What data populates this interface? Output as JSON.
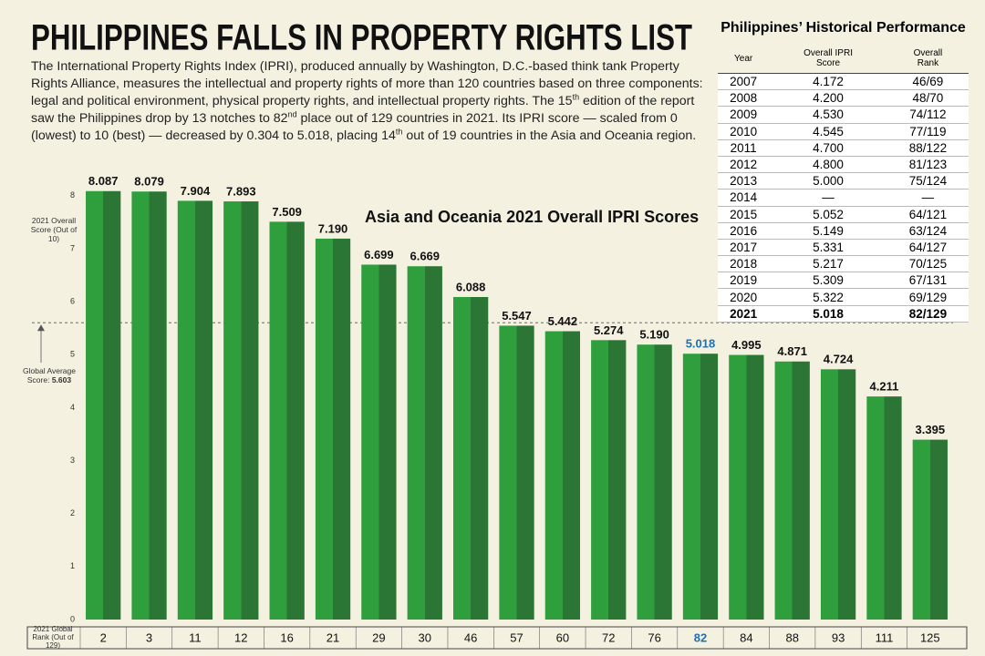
{
  "header": {
    "title": "PHILIPPINES FALLS IN PROPERTY RIGHTS LIST",
    "intro": [
      "The International Property Rights Index (IPRI), produced annually by Washington, D.C.-based think tank Property Rights Alliance, measures the intellectual and property rights of more than 120 countries based on three components: legal and political environment, physical property rights, and intellectual property rights. The 15",
      "th",
      " edition of the report saw the Philippines drop by 13 notches to 82",
      "nd",
      " place out of 129 countries in 2021. Its IPRI score — scaled from 0 (lowest) to 10 (best) — decreased by 0.304 to 5.018, placing 14",
      "th",
      " out of 19 countries in the Asia and Oceania region."
    ]
  },
  "table": {
    "title": "Philippines’ Historical Performance",
    "columns": [
      "Year",
      "Overall IPRI Score",
      "Overall Rank"
    ],
    "rows": [
      [
        "2007",
        "4.172",
        "46/69"
      ],
      [
        "2008",
        "4.200",
        "48/70"
      ],
      [
        "2009",
        "4.530",
        "74/112"
      ],
      [
        "2010",
        "4.545",
        "77/119"
      ],
      [
        "2011",
        "4.700",
        "88/122"
      ],
      [
        "2012",
        "4.800",
        "81/123"
      ],
      [
        "2013",
        "5.000",
        "75/124"
      ],
      [
        "2014",
        "—",
        "—"
      ],
      [
        "2015",
        "5.052",
        "64/121"
      ],
      [
        "2016",
        "5.149",
        "63/124"
      ],
      [
        "2017",
        "5.331",
        "64/127"
      ],
      [
        "2018",
        "5.217",
        "70/125"
      ],
      [
        "2019",
        "5.309",
        "67/131"
      ],
      [
        "2020",
        "5.322",
        "69/129"
      ],
      [
        "2021",
        "5.018",
        "82/129"
      ]
    ],
    "bold_last_row": true
  },
  "chart_data": {
    "type": "bar",
    "title": "Asia and Oceania 2021 Overall IPRI Scores",
    "y_label": "2021 Overall Score (Out of 10)",
    "x_label": "2021 Global Rank (Out of 129)",
    "categories": [
      "2",
      "3",
      "11",
      "12",
      "16",
      "21",
      "29",
      "30",
      "46",
      "57",
      "60",
      "72",
      "76",
      "82",
      "84",
      "88",
      "93",
      "111",
      "125"
    ],
    "values": [
      8.087,
      8.079,
      7.904,
      7.893,
      7.509,
      7.19,
      6.699,
      6.669,
      6.088,
      5.547,
      5.442,
      5.274,
      5.19,
      5.018,
      4.995,
      4.871,
      4.724,
      4.211,
      3.395
    ],
    "value_labels": [
      "8.087",
      "8.079",
      "7.904",
      "7.893",
      "7.509",
      "7.190",
      "6.699",
      "6.669",
      "6.088",
      "5.547",
      "5.442",
      "5.274",
      "5.190",
      "5.018",
      "4.995",
      "4.871",
      "4.724",
      "4.211",
      "3.395"
    ],
    "color": "#2f9e3d",
    "shade_color": "#2b7634",
    "highlight": {
      "category": "82",
      "color": "#1f6fb2"
    },
    "average": {
      "label": "Global Average Score:",
      "value": 5.603
    },
    "ylim": [
      0,
      8.1
    ],
    "yticks": [
      0,
      1,
      2,
      3,
      4,
      5,
      6,
      7,
      8
    ],
    "grid": false
  }
}
